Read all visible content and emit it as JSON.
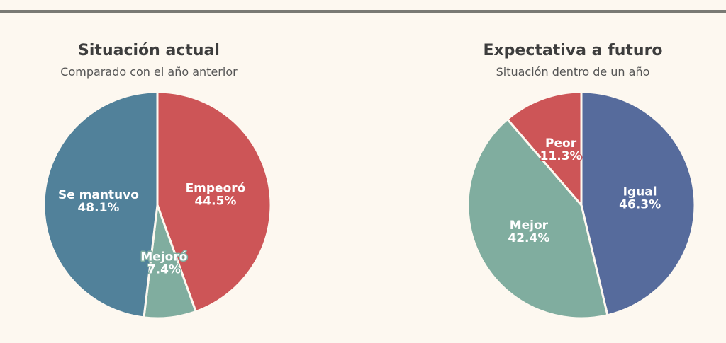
{
  "chart_data": [
    {
      "type": "pie",
      "title": "Situación actual",
      "subtitle": "Comparado con el año anterior",
      "categories": [
        "Empeoró",
        "Mejoró",
        "Se mantuvo"
      ],
      "values": [
        44.5,
        7.4,
        48.1
      ],
      "value_labels": [
        "44.5%",
        "7.4%",
        "48.1%"
      ],
      "colors": [
        "#cd5557",
        "#80ad9f",
        "#51819a"
      ]
    },
    {
      "type": "pie",
      "title": "Expectativa a futuro",
      "subtitle": "Situación dentro de un año",
      "categories": [
        "Igual",
        "Mejor",
        "Peor"
      ],
      "values": [
        46.3,
        42.4,
        11.3
      ],
      "value_labels": [
        "46.3%",
        "42.4%",
        "11.3%"
      ],
      "colors": [
        "#566b9c",
        "#80ad9f",
        "#cd5557"
      ]
    }
  ]
}
